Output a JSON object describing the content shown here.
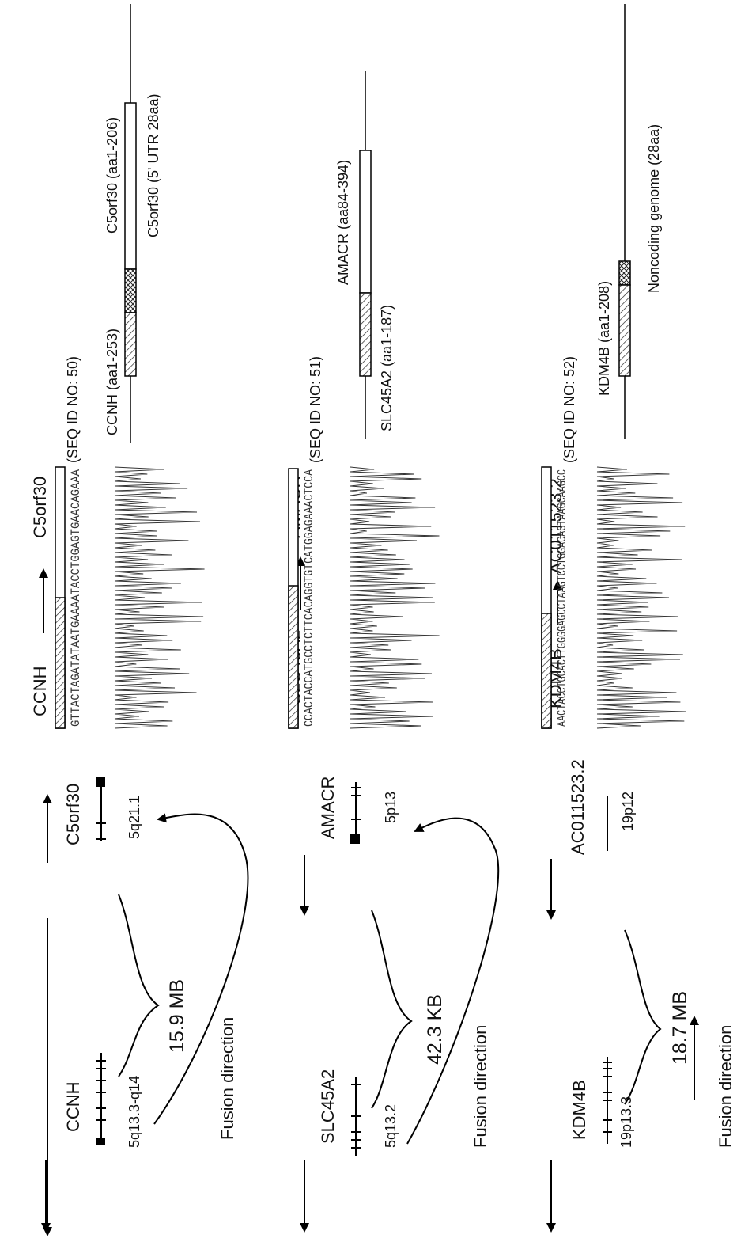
{
  "panels": [
    {
      "gene1": "CCNH",
      "gene2": "C5orf30",
      "band1": "5q13.3-q14",
      "band2": "5q21.1",
      "distance": "15.9 MB",
      "fusion_label": "Fusion direction",
      "seq": "GTTACTAGATATAATGAAAATACCTGGAGTGAACAGAAA",
      "seq_id": "(SEQ ID NO: 50)",
      "left_domain": "CCNH (aa1-253)",
      "right_top": "C5orf30 (aa1-206)",
      "right_bottom": "C5orf30 (5' UTR 28aa)"
    },
    {
      "gene1": "SLC45A2",
      "gene2": "AMACR",
      "band1": "5q13.2",
      "band2": "5p13",
      "distance": "42.3 KB",
      "fusion_label": "Fusion direction",
      "seq": "CCACTACCATGCCTCTTCACAGGTGTCATGGAGAAACTCCA",
      "seq_id": "(SEQ ID NO: 51)",
      "right_top": "AMACR (aa84-394)",
      "right_bottom": "SLC45A2 (aa1-187)"
    },
    {
      "gene1": "KDM4B",
      "gene2": "AC011523.2",
      "band1": "19p13.3",
      "band2": "19p12",
      "distance": "18.7 MB",
      "fusion_label": "Fusion direction",
      "seq": "AACTACCTGCACTTGGGGAGCCTAAGTCCTGGACAGTAAGCAAGCC",
      "seq_id": "(SEQ ID NO: 52)",
      "left_domain": "KDM4B (aa1-208)",
      "right_bottom": "Noncoding genome (28aa)"
    }
  ]
}
